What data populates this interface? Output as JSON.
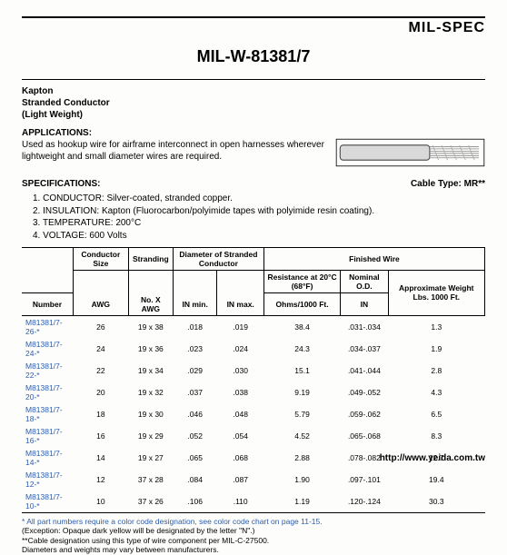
{
  "brand": "MIL-SPEC",
  "title": "MIL-W-81381/7",
  "subtitle_lines": [
    "Kapton",
    "Stranded Conductor",
    "(Light Weight)"
  ],
  "applications": {
    "heading": "APPLICATIONS:",
    "text": "Used as hookup wire for airframe interconnect in open harnesses wherever lightweight and small diameter wires are required."
  },
  "specifications": {
    "heading": "SPECIFICATIONS:",
    "cable_type": "Cable Type: MR**",
    "items": [
      "1.  CONDUCTOR: Silver-coated, stranded copper.",
      "2.  INSULATION: Kapton (Fluorocarbon/polyimide tapes with polyimide resin coating).",
      "3.  TEMPERATURE: 200°C",
      "4.  VOLTAGE: 600 Volts"
    ]
  },
  "table": {
    "group_headers": {
      "number": "Number",
      "conductor_size": "Conductor Size",
      "stranding": "Stranding",
      "diameter": "Diameter of Stranded Conductor",
      "finished": "Finished Wire",
      "resistance": "Resistance at 20°C (68°F)",
      "nominal_od": "Nominal O.D.",
      "weight": "Approximate Weight Lbs. 1000 Ft."
    },
    "sub_headers": {
      "awg": "AWG",
      "noxawg": "No. X AWG",
      "inmin": "IN min.",
      "inmax": "IN max.",
      "ohms": "Ohms/1000 Ft.",
      "in": "IN"
    },
    "rows": [
      {
        "pn": "M81381/7-26-*",
        "awg": "26",
        "str": "19 x 38",
        "min": ".018",
        "max": ".019",
        "ohm": "38.4",
        "od": ".031-.034",
        "wt": "1.3"
      },
      {
        "pn": "M81381/7-24-*",
        "awg": "24",
        "str": "19 x 36",
        "min": ".023",
        "max": ".024",
        "ohm": "24.3",
        "od": ".034-.037",
        "wt": "1.9"
      },
      {
        "pn": "M81381/7-22-*",
        "awg": "22",
        "str": "19 x 34",
        "min": ".029",
        "max": ".030",
        "ohm": "15.1",
        "od": ".041-.044",
        "wt": "2.8"
      },
      {
        "pn": "M81381/7-20-*",
        "awg": "20",
        "str": "19 x 32",
        "min": ".037",
        "max": ".038",
        "ohm": "9.19",
        "od": ".049-.052",
        "wt": "4.3"
      },
      {
        "pn": "M81381/7-18-*",
        "awg": "18",
        "str": "19 x 30",
        "min": ".046",
        "max": ".048",
        "ohm": "5.79",
        "od": ".059-.062",
        "wt": "6.5"
      },
      {
        "pn": "M81381/7-16-*",
        "awg": "16",
        "str": "19 x 29",
        "min": ".052",
        "max": ".054",
        "ohm": "4.52",
        "od": ".065-.068",
        "wt": "8.3"
      },
      {
        "pn": "M81381/7-14-*",
        "awg": "14",
        "str": "19 x 27",
        "min": ".065",
        "max": ".068",
        "ohm": "2.88",
        "od": ".078-.082",
        "wt": "12.7"
      },
      {
        "pn": "M81381/7-12-*",
        "awg": "12",
        "str": "37 x 28",
        "min": ".084",
        "max": ".087",
        "ohm": "1.90",
        "od": ".097-.101",
        "wt": "19.4"
      },
      {
        "pn": "M81381/7-10-*",
        "awg": "10",
        "str": "37 x 26",
        "min": ".106",
        "max": ".110",
        "ohm": "1.19",
        "od": ".120-.124",
        "wt": "30.3"
      }
    ]
  },
  "notes": {
    "n1": "* All part numbers require a color code designation, see color code chart on page 11-15.",
    "n2": "(Exception: Opaque dark yellow will be designated by the letter \"N\".)",
    "n3": "**Cable designation using this type of wire component per MIL-C-27500.",
    "n4": "Diameters and weights may vary between manufacturers."
  },
  "footer_url": "http://www.yeida.com.tw",
  "colors": {
    "link": "#2b5dad",
    "bg": "#fdfdfb"
  }
}
